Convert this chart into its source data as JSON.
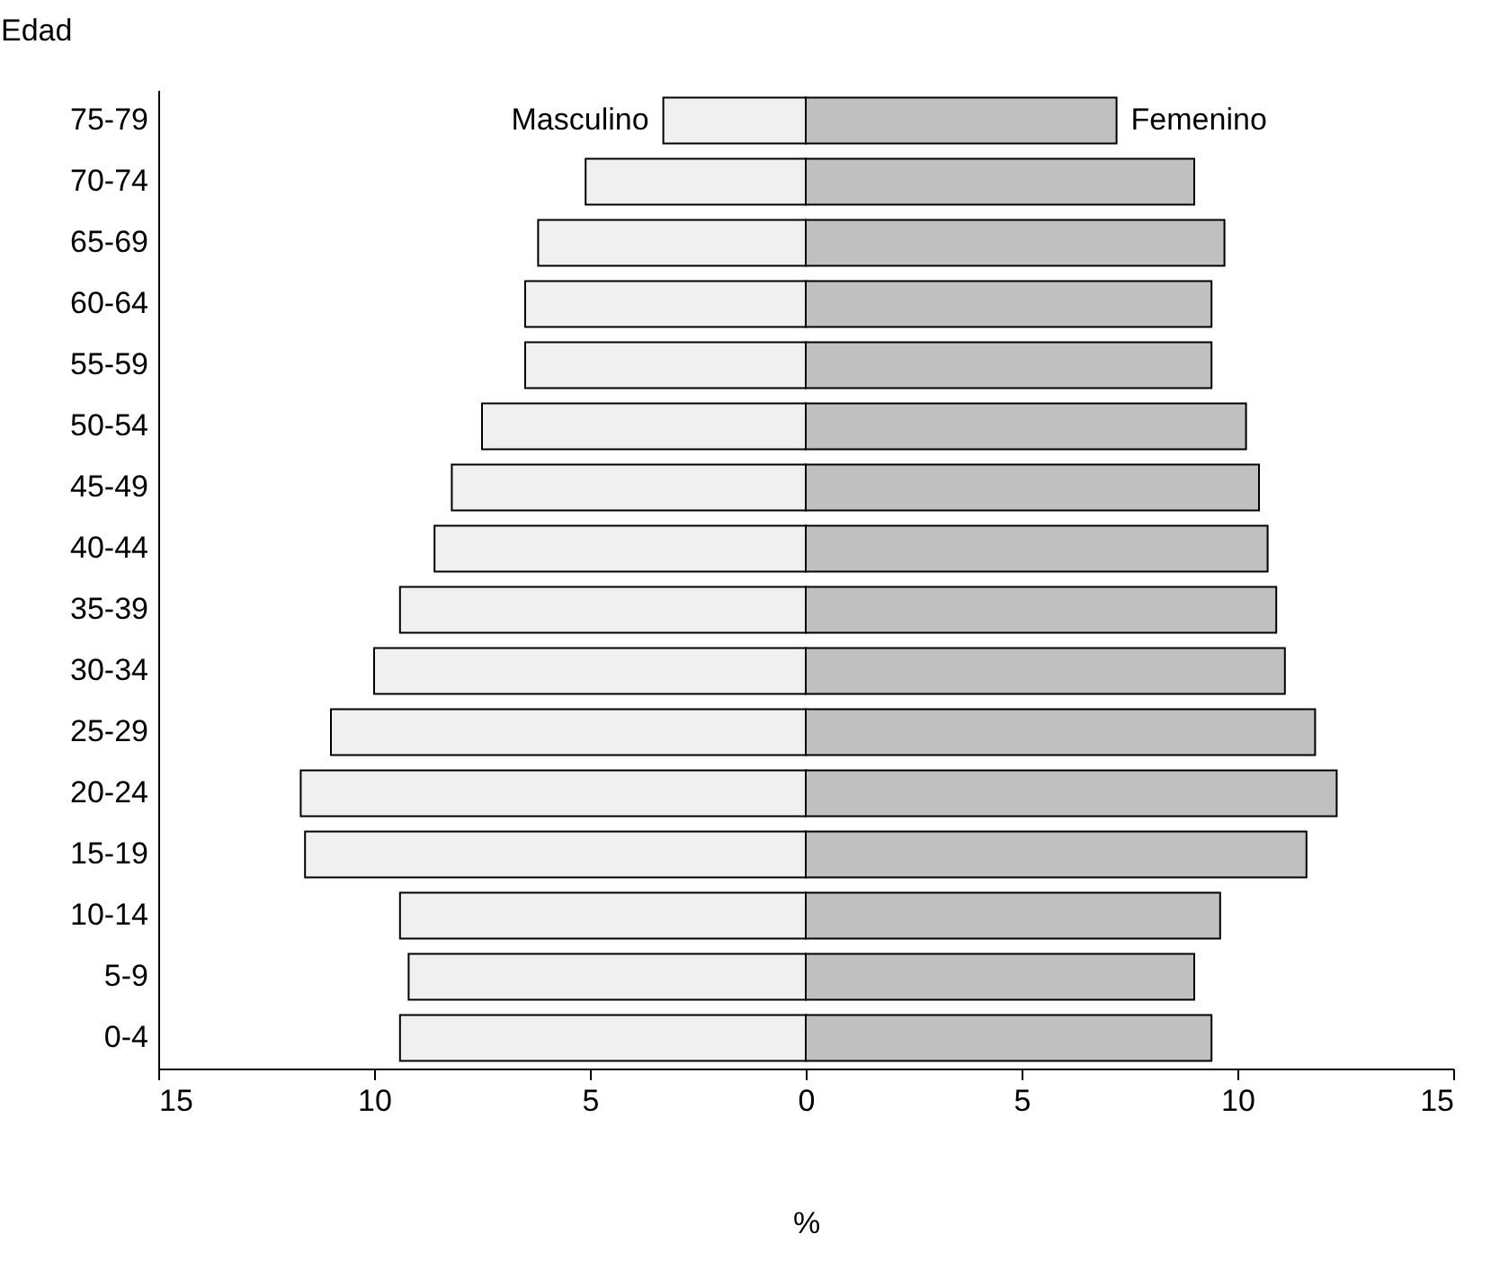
{
  "chart_data": {
    "type": "bar",
    "orientation": "horizontal",
    "ylabel": "Edad",
    "xlabel": "%",
    "categories": [
      "75-79",
      "70-74",
      "65-69",
      "60-64",
      "55-59",
      "50-54",
      "45-49",
      "40-44",
      "35-39",
      "30-34",
      "25-29",
      "20-24",
      "15-19",
      "10-14",
      "5-9",
      "0-4"
    ],
    "series": [
      {
        "name": "Masculino",
        "color": "#f0f0f0",
        "values": [
          -3.3,
          -5.1,
          -6.2,
          -6.5,
          -6.5,
          -7.5,
          -8.2,
          -8.6,
          -9.4,
          -10.0,
          -11.0,
          -11.7,
          -11.6,
          -9.4,
          -9.2,
          -9.4
        ]
      },
      {
        "name": "Femenino",
        "color": "#c0c0c0",
        "values": [
          7.2,
          9.0,
          9.7,
          9.4,
          9.4,
          10.2,
          10.5,
          10.7,
          10.9,
          11.1,
          11.8,
          12.3,
          11.6,
          9.6,
          9.0,
          9.4
        ]
      }
    ],
    "xlim": [
      -15,
      15
    ],
    "xticks": [
      {
        "value": -15,
        "label": "15"
      },
      {
        "value": -10,
        "label": "10"
      },
      {
        "value": -5,
        "label": "5"
      },
      0,
      5,
      10,
      15
    ],
    "grid": false,
    "legend": false,
    "stacked": true
  }
}
